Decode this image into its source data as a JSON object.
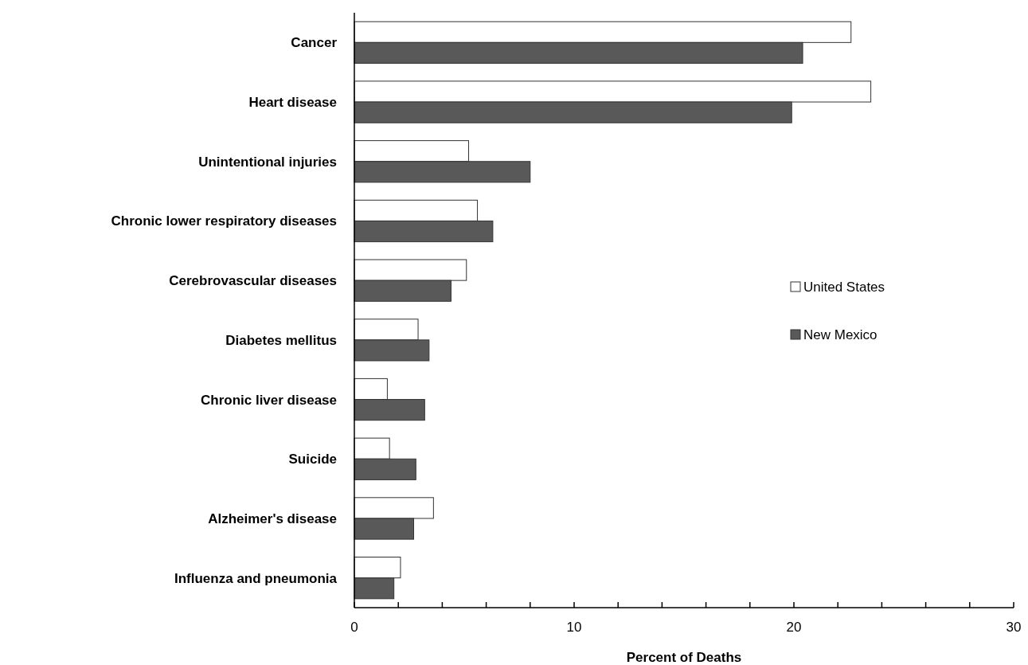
{
  "chart_data": {
    "type": "bar",
    "orientation": "horizontal",
    "xlabel": "Percent of Deaths",
    "categories": [
      "Cancer",
      "Heart disease",
      "Unintentional injuries",
      "Chronic lower respiratory diseases",
      "Cerebrovascular diseases",
      "Diabetes mellitus",
      "Chronic liver disease",
      "Suicide",
      "Alzheimer's disease",
      "Influenza and pneumonia"
    ],
    "series": [
      {
        "name": "United States",
        "color": "#ffffff",
        "values": [
          22.6,
          23.5,
          5.2,
          5.6,
          5.1,
          2.9,
          1.5,
          1.6,
          3.6,
          2.1
        ]
      },
      {
        "name": "New Mexico",
        "color": "#595959",
        "values": [
          20.4,
          19.9,
          8.0,
          6.3,
          4.4,
          3.4,
          3.2,
          2.8,
          2.7,
          1.8
        ]
      }
    ],
    "xlim": [
      0,
      30
    ],
    "xticks": [
      0,
      {
        "value": 2,
        "label": null
      },
      {
        "value": 4,
        "label": null
      },
      {
        "value": 6,
        "label": null
      },
      {
        "value": 8,
        "label": null
      },
      10,
      {
        "value": 12,
        "label": null
      },
      {
        "value": 14,
        "label": null
      },
      {
        "value": 16,
        "label": null
      },
      {
        "value": 18,
        "label": null
      },
      20,
      {
        "value": 22,
        "label": null
      },
      {
        "value": 24,
        "label": null
      },
      {
        "value": 26,
        "label": null
      },
      {
        "value": 28,
        "label": null
      },
      30
    ],
    "grid": false,
    "legend": "right"
  }
}
